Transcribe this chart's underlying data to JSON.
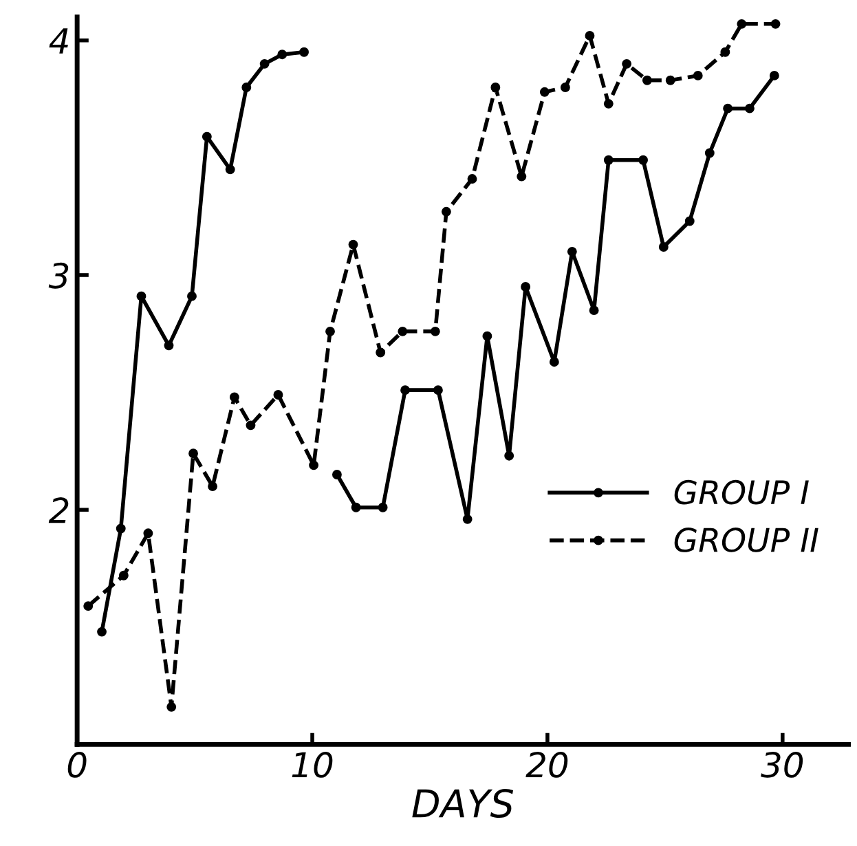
{
  "chart_data": {
    "type": "line",
    "xlabel": "DAYS",
    "xlim": [
      0,
      32.8
    ],
    "ylim": [
      1,
      4.1
    ],
    "xticks": [
      0,
      10,
      20,
      30
    ],
    "yticks": [
      2,
      3,
      4
    ],
    "grid": false,
    "legend": "right",
    "marker": "circle",
    "series": [
      {
        "name": "GROUP I",
        "color": "#000000",
        "line_style": "solid",
        "x": [
          1.05,
          1.86,
          2.73,
          3.9,
          4.88,
          5.52,
          6.51,
          7.2,
          7.97,
          8.72,
          9.65,
          null,
          11.05,
          11.86,
          13.0,
          13.95,
          15.35,
          16.6,
          17.44,
          18.37,
          19.07,
          20.29,
          21.05,
          21.98,
          22.6,
          24.07,
          24.94,
          26.05,
          26.9,
          27.67,
          28.6,
          29.65
        ],
        "values": [
          1.48,
          1.92,
          2.91,
          2.7,
          2.91,
          3.59,
          3.45,
          3.8,
          3.9,
          3.94,
          3.95,
          null,
          2.15,
          2.01,
          2.01,
          2.51,
          2.51,
          1.96,
          2.74,
          2.23,
          2.95,
          2.63,
          3.1,
          2.85,
          3.49,
          3.49,
          3.12,
          3.23,
          3.52,
          3.71,
          3.71,
          3.85
        ]
      },
      {
        "name": "GROUP II",
        "color": "#000000",
        "line_style": "dashed",
        "x": [
          0.47,
          1.98,
          3.02,
          4.01,
          4.94,
          5.76,
          6.69,
          7.38,
          8.55,
          10.06,
          10.76,
          11.74,
          12.9,
          13.84,
          15.23,
          15.7,
          16.8,
          17.79,
          18.9,
          19.88,
          20.76,
          21.8,
          22.6,
          23.37,
          24.24,
          25.23,
          26.4,
          27.56,
          28.26,
          29.7
        ],
        "values": [
          1.59,
          1.72,
          1.9,
          1.16,
          2.24,
          2.1,
          2.48,
          2.36,
          2.49,
          2.19,
          2.76,
          3.13,
          2.67,
          2.76,
          2.76,
          3.27,
          3.41,
          3.8,
          3.42,
          3.78,
          3.8,
          4.02,
          3.73,
          3.9,
          3.83,
          3.83,
          3.85,
          3.95,
          4.07,
          4.07
        ]
      }
    ]
  }
}
